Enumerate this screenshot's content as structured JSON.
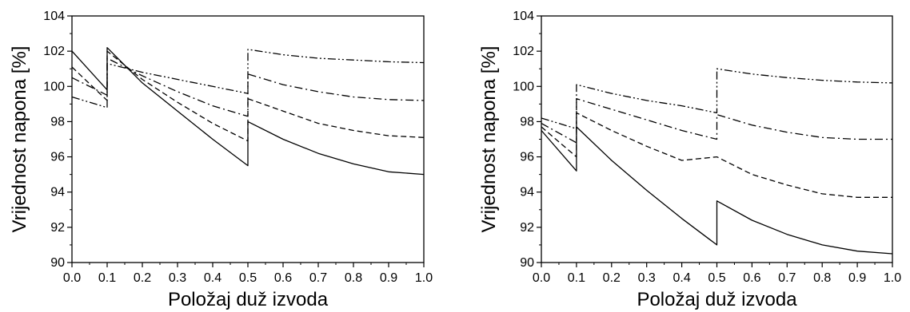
{
  "chart_data": [
    {
      "type": "line",
      "xlabel": "Položaj duž izvoda",
      "ylabel": "Vrijednost napona [%]",
      "xlim": [
        0.0,
        1.0
      ],
      "ylim": [
        90,
        104
      ],
      "xticks": [
        "0.0",
        "0.1",
        "0.2",
        "0.3",
        "0.4",
        "0.5",
        "0.6",
        "0.7",
        "0.8",
        "0.9",
        "1.0"
      ],
      "yticks": [
        "90",
        "92",
        "94",
        "96",
        "98",
        "100",
        "102",
        "104"
      ],
      "grid": false,
      "series": [
        {
          "style": "solid",
          "points": [
            [
              0.0,
              102.0
            ],
            [
              0.1,
              99.8
            ],
            [
              0.1,
              102.2
            ],
            [
              0.2,
              100.2
            ],
            [
              0.3,
              98.6
            ],
            [
              0.4,
              97.0
            ],
            [
              0.5,
              95.5
            ],
            [
              0.5,
              98.0
            ],
            [
              0.6,
              97.0
            ],
            [
              0.7,
              96.2
            ],
            [
              0.8,
              95.6
            ],
            [
              0.9,
              95.15
            ],
            [
              1.0,
              95.0
            ]
          ]
        },
        {
          "style": "dashed",
          "points": [
            [
              0.0,
              101.1
            ],
            [
              0.1,
              99.2
            ],
            [
              0.1,
              102.0
            ],
            [
              0.2,
              100.4
            ],
            [
              0.3,
              99.1
            ],
            [
              0.4,
              97.9
            ],
            [
              0.5,
              96.9
            ],
            [
              0.5,
              99.3
            ],
            [
              0.6,
              98.6
            ],
            [
              0.7,
              97.9
            ],
            [
              0.8,
              97.5
            ],
            [
              0.9,
              97.2
            ],
            [
              1.0,
              97.1
            ]
          ]
        },
        {
          "style": "dash-dot",
          "points": [
            [
              0.0,
              100.5
            ],
            [
              0.1,
              99.5
            ],
            [
              0.1,
              101.6
            ],
            [
              0.2,
              100.6
            ],
            [
              0.3,
              99.7
            ],
            [
              0.4,
              98.9
            ],
            [
              0.5,
              98.3
            ],
            [
              0.5,
              100.7
            ],
            [
              0.6,
              100.1
            ],
            [
              0.7,
              99.7
            ],
            [
              0.8,
              99.4
            ],
            [
              0.9,
              99.25
            ],
            [
              1.0,
              99.2
            ]
          ]
        },
        {
          "style": "dash-dot-dot",
          "points": [
            [
              0.0,
              99.4
            ],
            [
              0.1,
              98.8
            ],
            [
              0.1,
              101.3
            ],
            [
              0.2,
              100.8
            ],
            [
              0.3,
              100.4
            ],
            [
              0.4,
              100.0
            ],
            [
              0.5,
              99.6
            ],
            [
              0.5,
              102.1
            ],
            [
              0.6,
              101.8
            ],
            [
              0.7,
              101.6
            ],
            [
              0.8,
              101.5
            ],
            [
              0.9,
              101.4
            ],
            [
              1.0,
              101.35
            ]
          ]
        }
      ]
    },
    {
      "type": "line",
      "xlabel": "Položaj duž izvoda",
      "ylabel": "Vrijednost napona [%]",
      "xlim": [
        0.0,
        1.0
      ],
      "ylim": [
        90,
        104
      ],
      "xticks": [
        "0.0",
        "0.1",
        "0.2",
        "0.3",
        "0.4",
        "0.5",
        "0.6",
        "0.7",
        "0.8",
        "0.9",
        "1.0"
      ],
      "yticks": [
        "90",
        "92",
        "94",
        "96",
        "98",
        "100",
        "102",
        "104"
      ],
      "grid": false,
      "series": [
        {
          "style": "solid",
          "points": [
            [
              0.0,
              97.5
            ],
            [
              0.1,
              95.2
            ],
            [
              0.1,
              97.7
            ],
            [
              0.2,
              95.8
            ],
            [
              0.3,
              94.1
            ],
            [
              0.4,
              92.5
            ],
            [
              0.5,
              91.0
            ],
            [
              0.5,
              93.5
            ],
            [
              0.6,
              92.4
            ],
            [
              0.7,
              91.6
            ],
            [
              0.8,
              91.0
            ],
            [
              0.9,
              90.65
            ],
            [
              1.0,
              90.5
            ]
          ]
        },
        {
          "style": "dashed",
          "points": [
            [
              0.0,
              97.7
            ],
            [
              0.1,
              96.0
            ],
            [
              0.1,
              98.5
            ],
            [
              0.2,
              97.5
            ],
            [
              0.3,
              96.6
            ],
            [
              0.4,
              95.8
            ],
            [
              0.5,
              96.0
            ],
            [
              0.5,
              96.0
            ],
            [
              0.6,
              95.0
            ],
            [
              0.7,
              94.4
            ],
            [
              0.8,
              93.9
            ],
            [
              0.9,
              93.7
            ],
            [
              1.0,
              93.7
            ]
          ]
        },
        {
          "style": "dash-dot",
          "points": [
            [
              0.0,
              97.9
            ],
            [
              0.1,
              96.8
            ],
            [
              0.1,
              99.3
            ],
            [
              0.2,
              98.7
            ],
            [
              0.3,
              98.1
            ],
            [
              0.4,
              97.5
            ],
            [
              0.5,
              97.0
            ],
            [
              0.5,
              98.4
            ],
            [
              0.6,
              97.8
            ],
            [
              0.7,
              97.4
            ],
            [
              0.8,
              97.1
            ],
            [
              0.9,
              97.0
            ],
            [
              1.0,
              97.0
            ]
          ]
        },
        {
          "style": "dash-dot-dot",
          "points": [
            [
              0.0,
              98.2
            ],
            [
              0.1,
              97.6
            ],
            [
              0.1,
              100.1
            ],
            [
              0.2,
              99.6
            ],
            [
              0.3,
              99.2
            ],
            [
              0.4,
              98.9
            ],
            [
              0.5,
              98.5
            ],
            [
              0.5,
              101.0
            ],
            [
              0.6,
              100.7
            ],
            [
              0.7,
              100.5
            ],
            [
              0.8,
              100.35
            ],
            [
              0.9,
              100.25
            ],
            [
              1.0,
              100.2
            ]
          ]
        }
      ]
    }
  ]
}
